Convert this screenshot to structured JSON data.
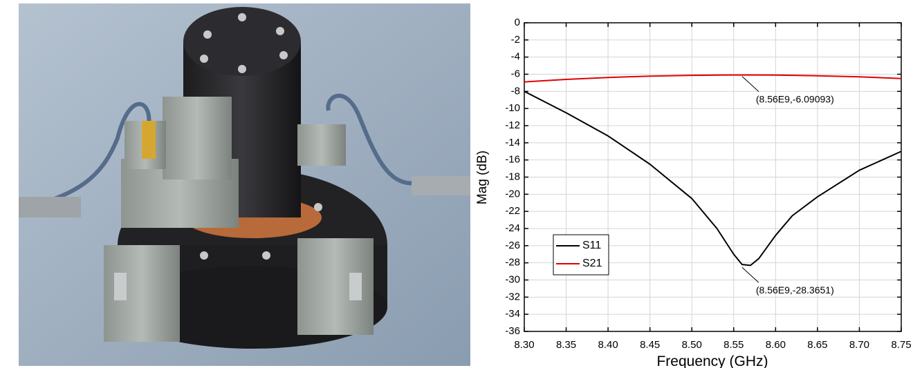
{
  "chart_data": {
    "type": "line",
    "x_label": "Frequency (GHz)",
    "y_label": "Mag (dB)",
    "x": [
      8.3,
      8.35,
      8.4,
      8.45,
      8.5,
      8.53,
      8.55,
      8.56,
      8.57,
      8.58,
      8.6,
      8.62,
      8.65,
      8.7,
      8.75
    ],
    "series": [
      {
        "name": "S11",
        "color": "#000000",
        "values": [
          -8,
          -10.5,
          -13.2,
          -16.5,
          -20.5,
          -24,
          -27,
          -28.2,
          -28.3,
          -27.5,
          -24.8,
          -22.5,
          -20.3,
          -17.2,
          -15.0
        ]
      },
      {
        "name": "S21",
        "color": "#e00000",
        "values": [
          -6.9,
          -6.6,
          -6.38,
          -6.22,
          -6.13,
          -6.1,
          -6.09,
          -6.09,
          -6.09,
          -6.09,
          -6.1,
          -6.13,
          -6.18,
          -6.3,
          -6.5
        ]
      }
    ],
    "xlim": [
      8.3,
      8.75
    ],
    "ylim": [
      -36,
      0
    ],
    "xticks": [
      {
        "value": 8.3,
        "label": "8.30"
      },
      8.35,
      {
        "value": 8.4,
        "label": "8.40"
      },
      8.45,
      {
        "value": 8.5,
        "label": "8.50"
      },
      8.55,
      {
        "value": 8.6,
        "label": "8.60"
      },
      8.65,
      {
        "value": 8.7,
        "label": "8.70"
      },
      8.75
    ],
    "yticks": [
      -36,
      -34,
      -32,
      -30,
      -28,
      -26,
      -24,
      -22,
      -20,
      -18,
      -16,
      -14,
      -12,
      -10,
      -8,
      -6,
      -4,
      -2,
      0
    ],
    "grid": true,
    "legend": "lower left",
    "annotations": [
      {
        "text": "(8.56E9,-6.09093)",
        "x": 8.56,
        "y": -6.09093
      },
      {
        "text": "(8.56E9,-28.3651)",
        "x": 8.56,
        "y": -28.3651
      }
    ]
  }
}
